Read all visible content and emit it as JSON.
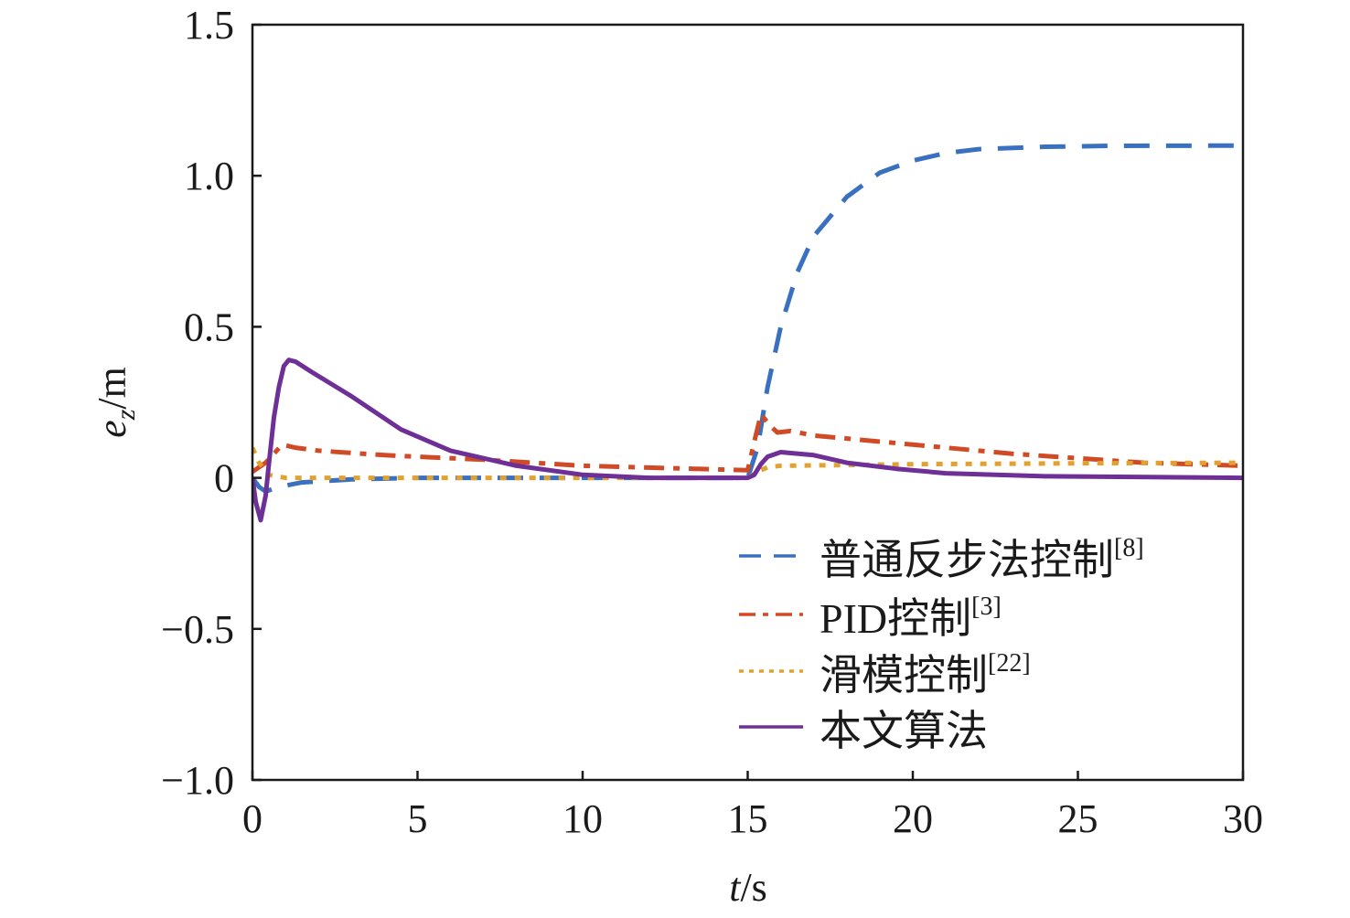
{
  "chart_data": {
    "type": "line",
    "title": "",
    "xlabel": {
      "italic": "t",
      "rest": "/s"
    },
    "ylabel": {
      "italic": "e",
      "sub": "z",
      "rest": "/m"
    },
    "xlim": [
      0,
      30
    ],
    "ylim": [
      -1.0,
      1.5
    ],
    "xticks": [
      0,
      5,
      10,
      15,
      20,
      25,
      30
    ],
    "xtick_labels": [
      "0",
      "5",
      "10",
      "15",
      "20",
      "25",
      "30"
    ],
    "yticks": [
      1.5,
      1.0,
      0.5,
      0,
      -0.5,
      -1.0
    ],
    "ytick_labels": [
      "1.5",
      "1.0",
      "0.5",
      "0",
      "−0.5",
      "−1.0"
    ],
    "grid": false,
    "legend_position": "lower-right",
    "series": [
      {
        "name": "普通反步法控制",
        "ref": "[8]",
        "color": "#3a70c0",
        "dash": "28,18",
        "x": [
          0,
          0.2,
          0.4,
          0.8,
          1.5,
          3,
          5,
          15,
          15.3,
          15.6,
          16,
          16.5,
          17,
          18,
          19,
          20,
          21,
          22,
          24,
          26,
          30
        ],
        "y": [
          0,
          -0.03,
          -0.045,
          -0.03,
          -0.015,
          -0.005,
          0,
          0,
          0.1,
          0.3,
          0.5,
          0.68,
          0.8,
          0.93,
          1.01,
          1.05,
          1.075,
          1.088,
          1.096,
          1.099,
          1.1
        ]
      },
      {
        "name": "PID控制",
        "ref": "[3]",
        "color": "#d04a25",
        "dash": "22,10,7,10",
        "x": [
          0,
          0.4,
          0.9,
          1.3,
          2,
          4,
          7,
          10,
          15,
          15.2,
          15.4,
          15.7,
          15.9,
          16.3,
          17,
          20,
          23,
          27,
          30
        ],
        "y": [
          0.02,
          0.05,
          0.11,
          0.1,
          0.09,
          0.075,
          0.06,
          0.04,
          0.025,
          0.12,
          0.21,
          0.17,
          0.15,
          0.155,
          0.14,
          0.11,
          0.08,
          0.05,
          0.04
        ]
      },
      {
        "name": "滑模控制",
        "ref": "[22]",
        "color": "#e2a230",
        "dash": "7,9",
        "x": [
          0,
          0.2,
          0.5,
          1,
          3,
          15,
          15.3,
          15.6,
          16,
          20,
          25,
          30
        ],
        "y": [
          0.1,
          0.05,
          0.01,
          0,
          0,
          0,
          0.02,
          0.035,
          0.04,
          0.045,
          0.048,
          0.05
        ]
      },
      {
        "name": "本文算法",
        "ref": "",
        "color": "#6e2f96",
        "dash": "",
        "x": [
          0,
          0.1,
          0.25,
          0.4,
          0.5,
          0.65,
          0.8,
          0.95,
          1.1,
          1.3,
          1.8,
          3,
          4.5,
          6,
          8,
          10,
          12,
          15,
          15.2,
          15.4,
          15.6,
          16,
          17,
          18,
          19.5,
          21,
          24,
          30
        ],
        "y": [
          0,
          -0.08,
          -0.14,
          -0.06,
          0.05,
          0.2,
          0.3,
          0.37,
          0.39,
          0.385,
          0.35,
          0.27,
          0.16,
          0.09,
          0.04,
          0.01,
          0,
          0,
          0.01,
          0.045,
          0.07,
          0.085,
          0.075,
          0.05,
          0.03,
          0.015,
          0.005,
          0
        ]
      }
    ]
  }
}
